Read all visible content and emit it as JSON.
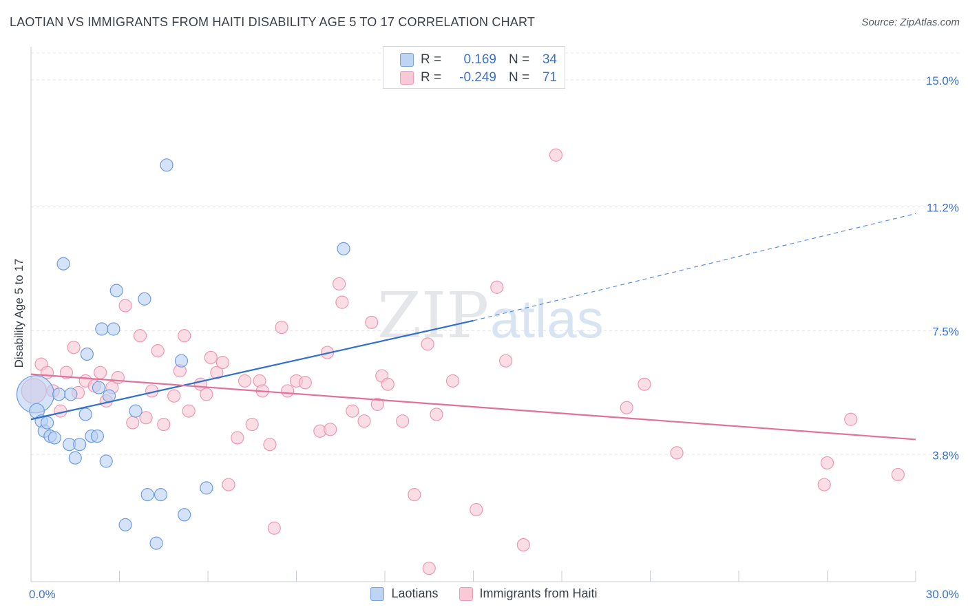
{
  "header": {
    "title": "LAOTIAN VS IMMIGRANTS FROM HAITI DISABILITY AGE 5 TO 17 CORRELATION CHART",
    "source": "Source: ZipAtlas.com"
  },
  "stats": {
    "rows": [
      {
        "r_label": "R =",
        "r_value": "0.169",
        "n_label": "N =",
        "n_value": "34",
        "color": "#a9c7ef"
      },
      {
        "r_label": "R =",
        "r_value": "-0.249",
        "n_label": "N =",
        "n_value": "71",
        "color": "#f5b8cb"
      }
    ]
  },
  "legend": {
    "laotians": "Laotians",
    "haiti": "Immigrants from Haiti"
  },
  "watermark": {
    "zip": "ZIP",
    "atlas": "atlas"
  },
  "chart_data": {
    "type": "scatter",
    "ylabel": "Disability Age 5 to 17",
    "xlim": [
      0,
      30
    ],
    "ylim": [
      0,
      15.8
    ],
    "x_tick_labels": [
      "0.0%",
      "30.0%"
    ],
    "y_ticks": [
      3.8,
      7.5,
      11.2,
      15.0
    ],
    "y_tick_labels": [
      "3.8%",
      "7.5%",
      "11.2%",
      "15.0%"
    ],
    "grid": "horizontal dashed",
    "colors": {
      "laotians_fill": "#b8d0f2",
      "laotians_stroke": "#6e9be0",
      "laotians_line": "#2f6fcf",
      "haiti_fill": "#f8c6d5",
      "haiti_stroke": "#ec98b3",
      "haiti_line": "#e2709a",
      "tick_text": "#3b73c8"
    },
    "series": [
      {
        "name": "Laotians",
        "points": [
          [
            0.15,
            5.6,
            30
          ],
          [
            0.2,
            5.1,
            12
          ],
          [
            0.35,
            4.8,
            10
          ],
          [
            0.45,
            4.5,
            10
          ],
          [
            0.55,
            4.75,
            10
          ],
          [
            0.65,
            4.35,
            10
          ],
          [
            0.8,
            4.3,
            10
          ],
          [
            0.95,
            5.6,
            10
          ],
          [
            1.1,
            9.5,
            10
          ],
          [
            1.3,
            4.1,
            10
          ],
          [
            1.35,
            5.6,
            10
          ],
          [
            1.5,
            3.7,
            10
          ],
          [
            1.65,
            4.1,
            10
          ],
          [
            1.85,
            5.0,
            10
          ],
          [
            1.9,
            6.8,
            10
          ],
          [
            2.05,
            4.35,
            10
          ],
          [
            2.25,
            4.35,
            10
          ],
          [
            2.3,
            5.8,
            10
          ],
          [
            2.4,
            7.55,
            10
          ],
          [
            2.55,
            3.6,
            10
          ],
          [
            2.65,
            5.55,
            10
          ],
          [
            2.8,
            7.55,
            10
          ],
          [
            2.9,
            8.7,
            10
          ],
          [
            3.2,
            1.7,
            10
          ],
          [
            3.55,
            5.1,
            10
          ],
          [
            3.85,
            8.45,
            10
          ],
          [
            3.95,
            2.6,
            10
          ],
          [
            4.25,
            1.15,
            10
          ],
          [
            4.4,
            2.6,
            10
          ],
          [
            4.6,
            12.45,
            10
          ],
          [
            5.1,
            6.6,
            10
          ],
          [
            5.2,
            2.0,
            10
          ],
          [
            5.95,
            2.8,
            10
          ],
          [
            10.6,
            9.95,
            10
          ]
        ],
        "trend": {
          "x0": 0,
          "y0": 4.85,
          "x1": 15.0,
          "y1": 7.8,
          "dash_x1": 30.0,
          "dash_y1": 11.0
        }
      },
      {
        "name": "Immigrants from Haiti",
        "points": [
          [
            0.1,
            5.7,
            20
          ],
          [
            0.35,
            6.5,
            10
          ],
          [
            0.55,
            6.25,
            10
          ],
          [
            0.75,
            5.7,
            10
          ],
          [
            1.0,
            5.1,
            10
          ],
          [
            1.2,
            6.25,
            10
          ],
          [
            1.45,
            7.0,
            10
          ],
          [
            1.6,
            5.65,
            10
          ],
          [
            1.85,
            6.0,
            10
          ],
          [
            2.15,
            5.85,
            10
          ],
          [
            2.35,
            6.25,
            10
          ],
          [
            2.55,
            5.4,
            10
          ],
          [
            2.75,
            5.8,
            10
          ],
          [
            2.95,
            6.1,
            10
          ],
          [
            3.2,
            8.25,
            10
          ],
          [
            3.45,
            4.75,
            10
          ],
          [
            3.7,
            7.35,
            10
          ],
          [
            3.9,
            4.9,
            10
          ],
          [
            4.1,
            5.7,
            10
          ],
          [
            4.3,
            6.9,
            10
          ],
          [
            4.5,
            4.7,
            10
          ],
          [
            4.85,
            5.55,
            10
          ],
          [
            5.05,
            6.3,
            10
          ],
          [
            5.2,
            7.35,
            10
          ],
          [
            5.35,
            5.1,
            10
          ],
          [
            5.75,
            5.9,
            10
          ],
          [
            5.95,
            5.6,
            10
          ],
          [
            6.1,
            6.7,
            10
          ],
          [
            6.3,
            6.25,
            10
          ],
          [
            6.5,
            6.55,
            10
          ],
          [
            6.7,
            2.9,
            10
          ],
          [
            7.0,
            4.3,
            10
          ],
          [
            7.25,
            6.0,
            10
          ],
          [
            7.5,
            4.7,
            10
          ],
          [
            7.75,
            6.0,
            10
          ],
          [
            7.85,
            5.7,
            10
          ],
          [
            8.1,
            4.1,
            10
          ],
          [
            8.25,
            1.6,
            10
          ],
          [
            8.5,
            7.6,
            10
          ],
          [
            8.7,
            5.7,
            10
          ],
          [
            9.0,
            6.0,
            10
          ],
          [
            9.3,
            5.95,
            10
          ],
          [
            9.8,
            4.5,
            10
          ],
          [
            10.05,
            6.85,
            10
          ],
          [
            10.15,
            4.55,
            10
          ],
          [
            10.45,
            8.9,
            10
          ],
          [
            10.55,
            8.35,
            10
          ],
          [
            10.9,
            5.1,
            10
          ],
          [
            11.3,
            4.8,
            10
          ],
          [
            11.55,
            7.75,
            10
          ],
          [
            11.75,
            5.3,
            10
          ],
          [
            11.9,
            6.15,
            10
          ],
          [
            12.1,
            5.9,
            10
          ],
          [
            12.6,
            4.8,
            10
          ],
          [
            13.0,
            2.6,
            10
          ],
          [
            13.45,
            7.1,
            10
          ],
          [
            13.5,
            0.4,
            10
          ],
          [
            13.75,
            5.0,
            10
          ],
          [
            14.3,
            6.0,
            10
          ],
          [
            15.1,
            2.15,
            10
          ],
          [
            15.8,
            8.8,
            10
          ],
          [
            16.1,
            6.6,
            10
          ],
          [
            16.7,
            1.1,
            10
          ],
          [
            17.8,
            12.75,
            10
          ],
          [
            20.2,
            5.2,
            10
          ],
          [
            20.8,
            5.9,
            10
          ],
          [
            21.9,
            3.85,
            10
          ],
          [
            26.9,
            2.9,
            10
          ],
          [
            27.0,
            3.55,
            10
          ],
          [
            27.8,
            4.85,
            10
          ],
          [
            29.4,
            3.2,
            10
          ]
        ],
        "trend": {
          "x0": 0,
          "y0": 6.2,
          "x1": 30.0,
          "y1": 4.25
        }
      }
    ]
  }
}
